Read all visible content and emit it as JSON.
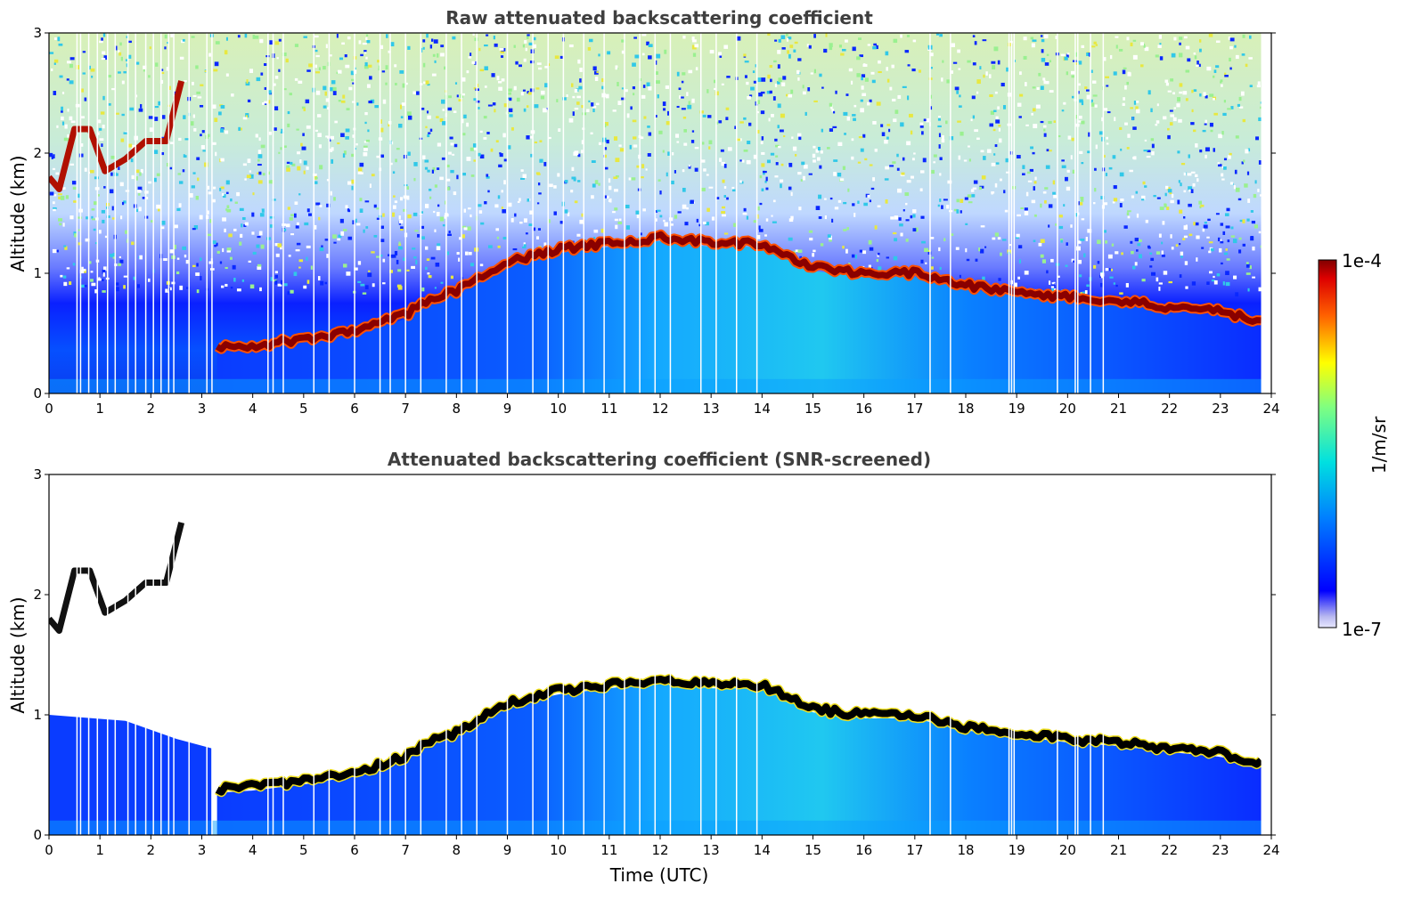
{
  "figure": {
    "xlabel": "Time (UTC)",
    "colorbar": {
      "label": "1/m/sr",
      "max_label": "1e-4",
      "min_label": "1e-7",
      "scale": "log",
      "colormap": "jet",
      "range": [
        1e-07,
        0.0001
      ]
    }
  },
  "chart_data": [
    {
      "type": "heatmap",
      "title": "Raw attenuated backscattering coefficient",
      "ylabel": "Altitude (km)",
      "xlim": [
        0,
        24
      ],
      "ylim": [
        0,
        3
      ],
      "x_ticks": [
        "0",
        "1",
        "2",
        "3",
        "4",
        "5",
        "6",
        "7",
        "8",
        "9",
        "10",
        "11",
        "12",
        "13",
        "14",
        "15",
        "16",
        "17",
        "18",
        "19",
        "20",
        "21",
        "22",
        "23",
        "24"
      ],
      "y_ticks": [
        "0",
        "1",
        "2",
        "3"
      ],
      "data_end_hour": 23.8,
      "cloud_layer_km": {
        "hours": [
          3.3,
          4.0,
          5.0,
          6.0,
          7.0,
          7.5,
          8.0,
          9.0,
          10.0,
          11.0,
          12.0,
          13.0,
          14.0,
          15.0,
          16.0,
          17.0,
          18.0,
          19.0,
          20.0,
          21.0,
          22.0,
          23.0,
          23.8
        ],
        "altitude": [
          0.38,
          0.4,
          0.45,
          0.52,
          0.65,
          0.8,
          0.85,
          1.1,
          1.2,
          1.25,
          1.3,
          1.25,
          1.25,
          1.05,
          1.0,
          1.0,
          0.9,
          0.85,
          0.8,
          0.77,
          0.72,
          0.68,
          0.6
        ]
      },
      "upper_cloud_km": {
        "hours": [
          0.0,
          0.2,
          0.5,
          0.8,
          1.1,
          1.5,
          1.9,
          2.3,
          2.6
        ],
        "altitude": [
          1.8,
          1.7,
          2.2,
          2.2,
          1.85,
          1.95,
          2.1,
          2.1,
          2.6
        ]
      },
      "data_gaps_hours": [
        0.55,
        0.62,
        0.78,
        0.95,
        1.15,
        1.3,
        1.55,
        1.7,
        1.9,
        2.05,
        2.2,
        2.35,
        2.45,
        2.75,
        3.1,
        3.2,
        4.3,
        4.4,
        4.6,
        5.2,
        5.5,
        6.0,
        6.5,
        6.7,
        7.0,
        7.3,
        7.8,
        8.1,
        8.4,
        9.0,
        9.5,
        9.8,
        10.1,
        10.5,
        10.9,
        11.3,
        11.6,
        11.9,
        12.2,
        12.8,
        13.1,
        13.5,
        13.9,
        17.3,
        17.7,
        18.85,
        18.9,
        18.95,
        19.8,
        20.15,
        20.2,
        20.45,
        20.7
      ]
    },
    {
      "type": "heatmap",
      "title": "Attenuated backscattering coefficient (SNR-screened)",
      "ylabel": "Altitude (km)",
      "xlim": [
        0,
        24
      ],
      "ylim": [
        0,
        3
      ],
      "x_ticks": [
        "0",
        "1",
        "2",
        "3",
        "4",
        "5",
        "6",
        "7",
        "8",
        "9",
        "10",
        "11",
        "12",
        "13",
        "14",
        "15",
        "16",
        "17",
        "18",
        "19",
        "20",
        "21",
        "22",
        "23",
        "24"
      ],
      "y_ticks": [
        "0",
        "1",
        "2",
        "3"
      ],
      "data_end_hour": 23.8,
      "cloud_layer_km": {
        "hours": [
          3.3,
          4.0,
          5.0,
          6.0,
          7.0,
          7.5,
          8.0,
          9.0,
          10.0,
          11.0,
          12.0,
          13.0,
          14.0,
          15.0,
          16.0,
          17.0,
          18.0,
          19.0,
          20.0,
          21.0,
          22.0,
          23.0,
          23.8
        ],
        "altitude": [
          0.38,
          0.4,
          0.45,
          0.52,
          0.65,
          0.8,
          0.85,
          1.1,
          1.2,
          1.25,
          1.3,
          1.25,
          1.25,
          1.05,
          1.0,
          1.0,
          0.9,
          0.85,
          0.8,
          0.77,
          0.72,
          0.68,
          0.6
        ]
      },
      "upper_cloud_km": {
        "hours": [
          0.0,
          0.2,
          0.5,
          0.8,
          1.1,
          1.5,
          1.9,
          2.3,
          2.6
        ],
        "altitude": [
          1.8,
          1.7,
          2.2,
          2.2,
          1.85,
          1.95,
          2.1,
          2.1,
          2.6
        ]
      },
      "data_gaps_hours": [
        0.55,
        0.62,
        0.78,
        0.95,
        1.15,
        1.3,
        1.55,
        1.7,
        1.9,
        2.05,
        2.2,
        2.35,
        2.45,
        2.75,
        3.1,
        3.2,
        4.3,
        4.4,
        4.6,
        5.2,
        5.5,
        6.0,
        6.5,
        6.7,
        7.0,
        7.3,
        7.8,
        8.1,
        8.4,
        9.0,
        9.5,
        9.8,
        10.1,
        10.5,
        10.9,
        11.3,
        11.6,
        11.9,
        12.2,
        12.8,
        13.1,
        13.5,
        13.9,
        17.3,
        17.7,
        18.85,
        18.9,
        18.95,
        19.8,
        20.15,
        20.2,
        20.45,
        20.7
      ]
    }
  ]
}
